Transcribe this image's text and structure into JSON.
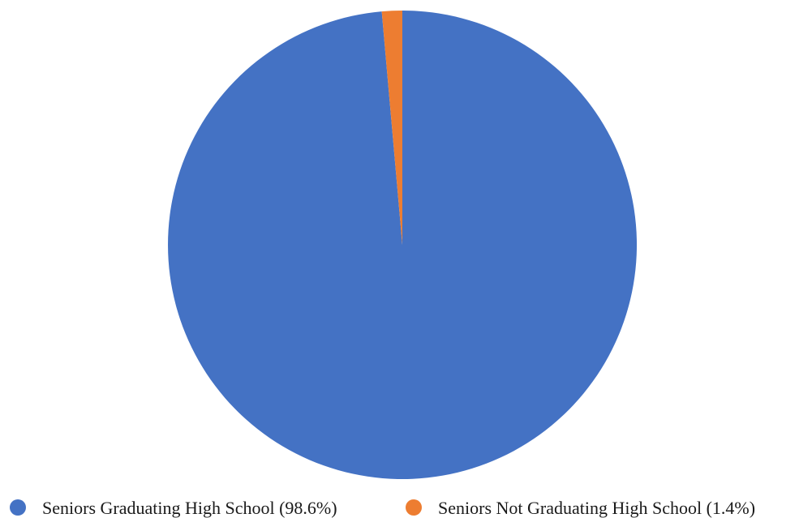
{
  "chart_data": {
    "type": "pie",
    "title": "",
    "start_angle_deg": 0,
    "direction": "clockwise",
    "legend_position": "bottom",
    "slices": [
      {
        "label": "Seniors Graduating High School",
        "value": 98.6,
        "legend_text": "Seniors Graduating High School (98.6%)",
        "color": "#4472c4"
      },
      {
        "label": "Seniors Not Graduating High School",
        "value": 1.4,
        "legend_text": "Seniors Not Graduating High School (1.4%)",
        "color": "#ed7d31"
      }
    ]
  }
}
